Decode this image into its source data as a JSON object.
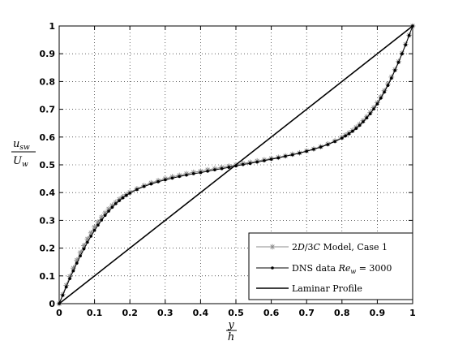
{
  "chart_data": {
    "type": "line",
    "xlabel": {
      "num": "y",
      "den": "h"
    },
    "ylabel": {
      "num": "u",
      "num_sub": "sw",
      "den": "U",
      "den_sub": "w"
    },
    "xlim": [
      0,
      1
    ],
    "ylim": [
      0,
      1
    ],
    "xticks": [
      "0",
      "0.1",
      "0.2",
      "0.3",
      "0.4",
      "0.5",
      "0.6",
      "0.7",
      "0.8",
      "0.9",
      "1"
    ],
    "yticks": [
      "0",
      "0.1",
      "0.2",
      "0.3",
      "0.4",
      "0.5",
      "0.6",
      "0.7",
      "0.8",
      "0.9",
      "1"
    ],
    "grid": true,
    "legend_position": "bottom-right",
    "series": [
      {
        "name": "2D/3C Model, Case 1",
        "name_parts": {
          "a": "2",
          "b": "D",
          "c": "/3",
          "d": "C",
          "e": " Model, Case 1"
        },
        "style": "gray-asterisk",
        "color": "#8c8c8c",
        "x": [
          0,
          0.01,
          0.02,
          0.03,
          0.04,
          0.05,
          0.06,
          0.07,
          0.08,
          0.09,
          0.1,
          0.11,
          0.12,
          0.13,
          0.14,
          0.15,
          0.16,
          0.17,
          0.18,
          0.19,
          0.2,
          0.22,
          0.24,
          0.26,
          0.28,
          0.3,
          0.32,
          0.34,
          0.36,
          0.38,
          0.4,
          0.42,
          0.44,
          0.46,
          0.48,
          0.5,
          0.52,
          0.54,
          0.56,
          0.58,
          0.6,
          0.62,
          0.64,
          0.66,
          0.68,
          0.7,
          0.72,
          0.74,
          0.76,
          0.78,
          0.8,
          0.81,
          0.82,
          0.83,
          0.84,
          0.85,
          0.86,
          0.87,
          0.88,
          0.89,
          0.9,
          0.91,
          0.92,
          0.93,
          0.94,
          0.95,
          0.96,
          0.97,
          0.98,
          0.99,
          1.0
        ],
        "y": [
          0,
          0.033,
          0.066,
          0.098,
          0.128,
          0.157,
          0.184,
          0.209,
          0.233,
          0.255,
          0.276,
          0.294,
          0.312,
          0.327,
          0.341,
          0.354,
          0.365,
          0.376,
          0.385,
          0.393,
          0.401,
          0.414,
          0.425,
          0.435,
          0.443,
          0.45,
          0.457,
          0.462,
          0.468,
          0.473,
          0.477,
          0.482,
          0.486,
          0.491,
          0.495,
          0.5,
          0.505,
          0.509,
          0.514,
          0.518,
          0.523,
          0.527,
          0.532,
          0.538,
          0.543,
          0.55,
          0.557,
          0.565,
          0.575,
          0.586,
          0.599,
          0.607,
          0.615,
          0.624,
          0.635,
          0.646,
          0.659,
          0.673,
          0.688,
          0.706,
          0.724,
          0.745,
          0.767,
          0.791,
          0.816,
          0.843,
          0.872,
          0.902,
          0.934,
          0.967,
          1.0
        ]
      },
      {
        "name": "DNS data Re_w = 3000",
        "name_parts": {
          "a": "DNS data ",
          "b": "Re",
          "c": "w",
          "d": " = 3000"
        },
        "style": "black-dot",
        "color": "#000000",
        "x": [
          0,
          0.01,
          0.02,
          0.03,
          0.04,
          0.05,
          0.06,
          0.07,
          0.08,
          0.09,
          0.1,
          0.11,
          0.12,
          0.13,
          0.14,
          0.15,
          0.16,
          0.17,
          0.18,
          0.19,
          0.2,
          0.22,
          0.24,
          0.26,
          0.28,
          0.3,
          0.32,
          0.34,
          0.36,
          0.38,
          0.4,
          0.42,
          0.44,
          0.46,
          0.48,
          0.5,
          0.52,
          0.54,
          0.56,
          0.58,
          0.6,
          0.62,
          0.64,
          0.66,
          0.68,
          0.7,
          0.72,
          0.74,
          0.76,
          0.78,
          0.8,
          0.81,
          0.82,
          0.83,
          0.84,
          0.85,
          0.86,
          0.87,
          0.88,
          0.89,
          0.9,
          0.91,
          0.92,
          0.93,
          0.94,
          0.95,
          0.96,
          0.97,
          0.98,
          0.99,
          1.0
        ],
        "y": [
          0,
          0.03,
          0.06,
          0.09,
          0.118,
          0.146,
          0.172,
          0.197,
          0.221,
          0.243,
          0.264,
          0.283,
          0.301,
          0.318,
          0.333,
          0.347,
          0.36,
          0.371,
          0.381,
          0.39,
          0.398,
          0.411,
          0.422,
          0.431,
          0.439,
          0.446,
          0.452,
          0.458,
          0.463,
          0.468,
          0.472,
          0.477,
          0.482,
          0.486,
          0.491,
          0.496,
          0.501,
          0.505,
          0.51,
          0.515,
          0.52,
          0.525,
          0.531,
          0.536,
          0.542,
          0.549,
          0.556,
          0.564,
          0.573,
          0.584,
          0.596,
          0.604,
          0.612,
          0.621,
          0.631,
          0.642,
          0.655,
          0.669,
          0.684,
          0.701,
          0.719,
          0.74,
          0.762,
          0.786,
          0.812,
          0.84,
          0.869,
          0.9,
          0.932,
          0.966,
          1.0
        ]
      },
      {
        "name": "Laminar Profile",
        "style": "black-line",
        "color": "#000000",
        "x": [
          0,
          1
        ],
        "y": [
          0,
          1
        ]
      }
    ]
  }
}
